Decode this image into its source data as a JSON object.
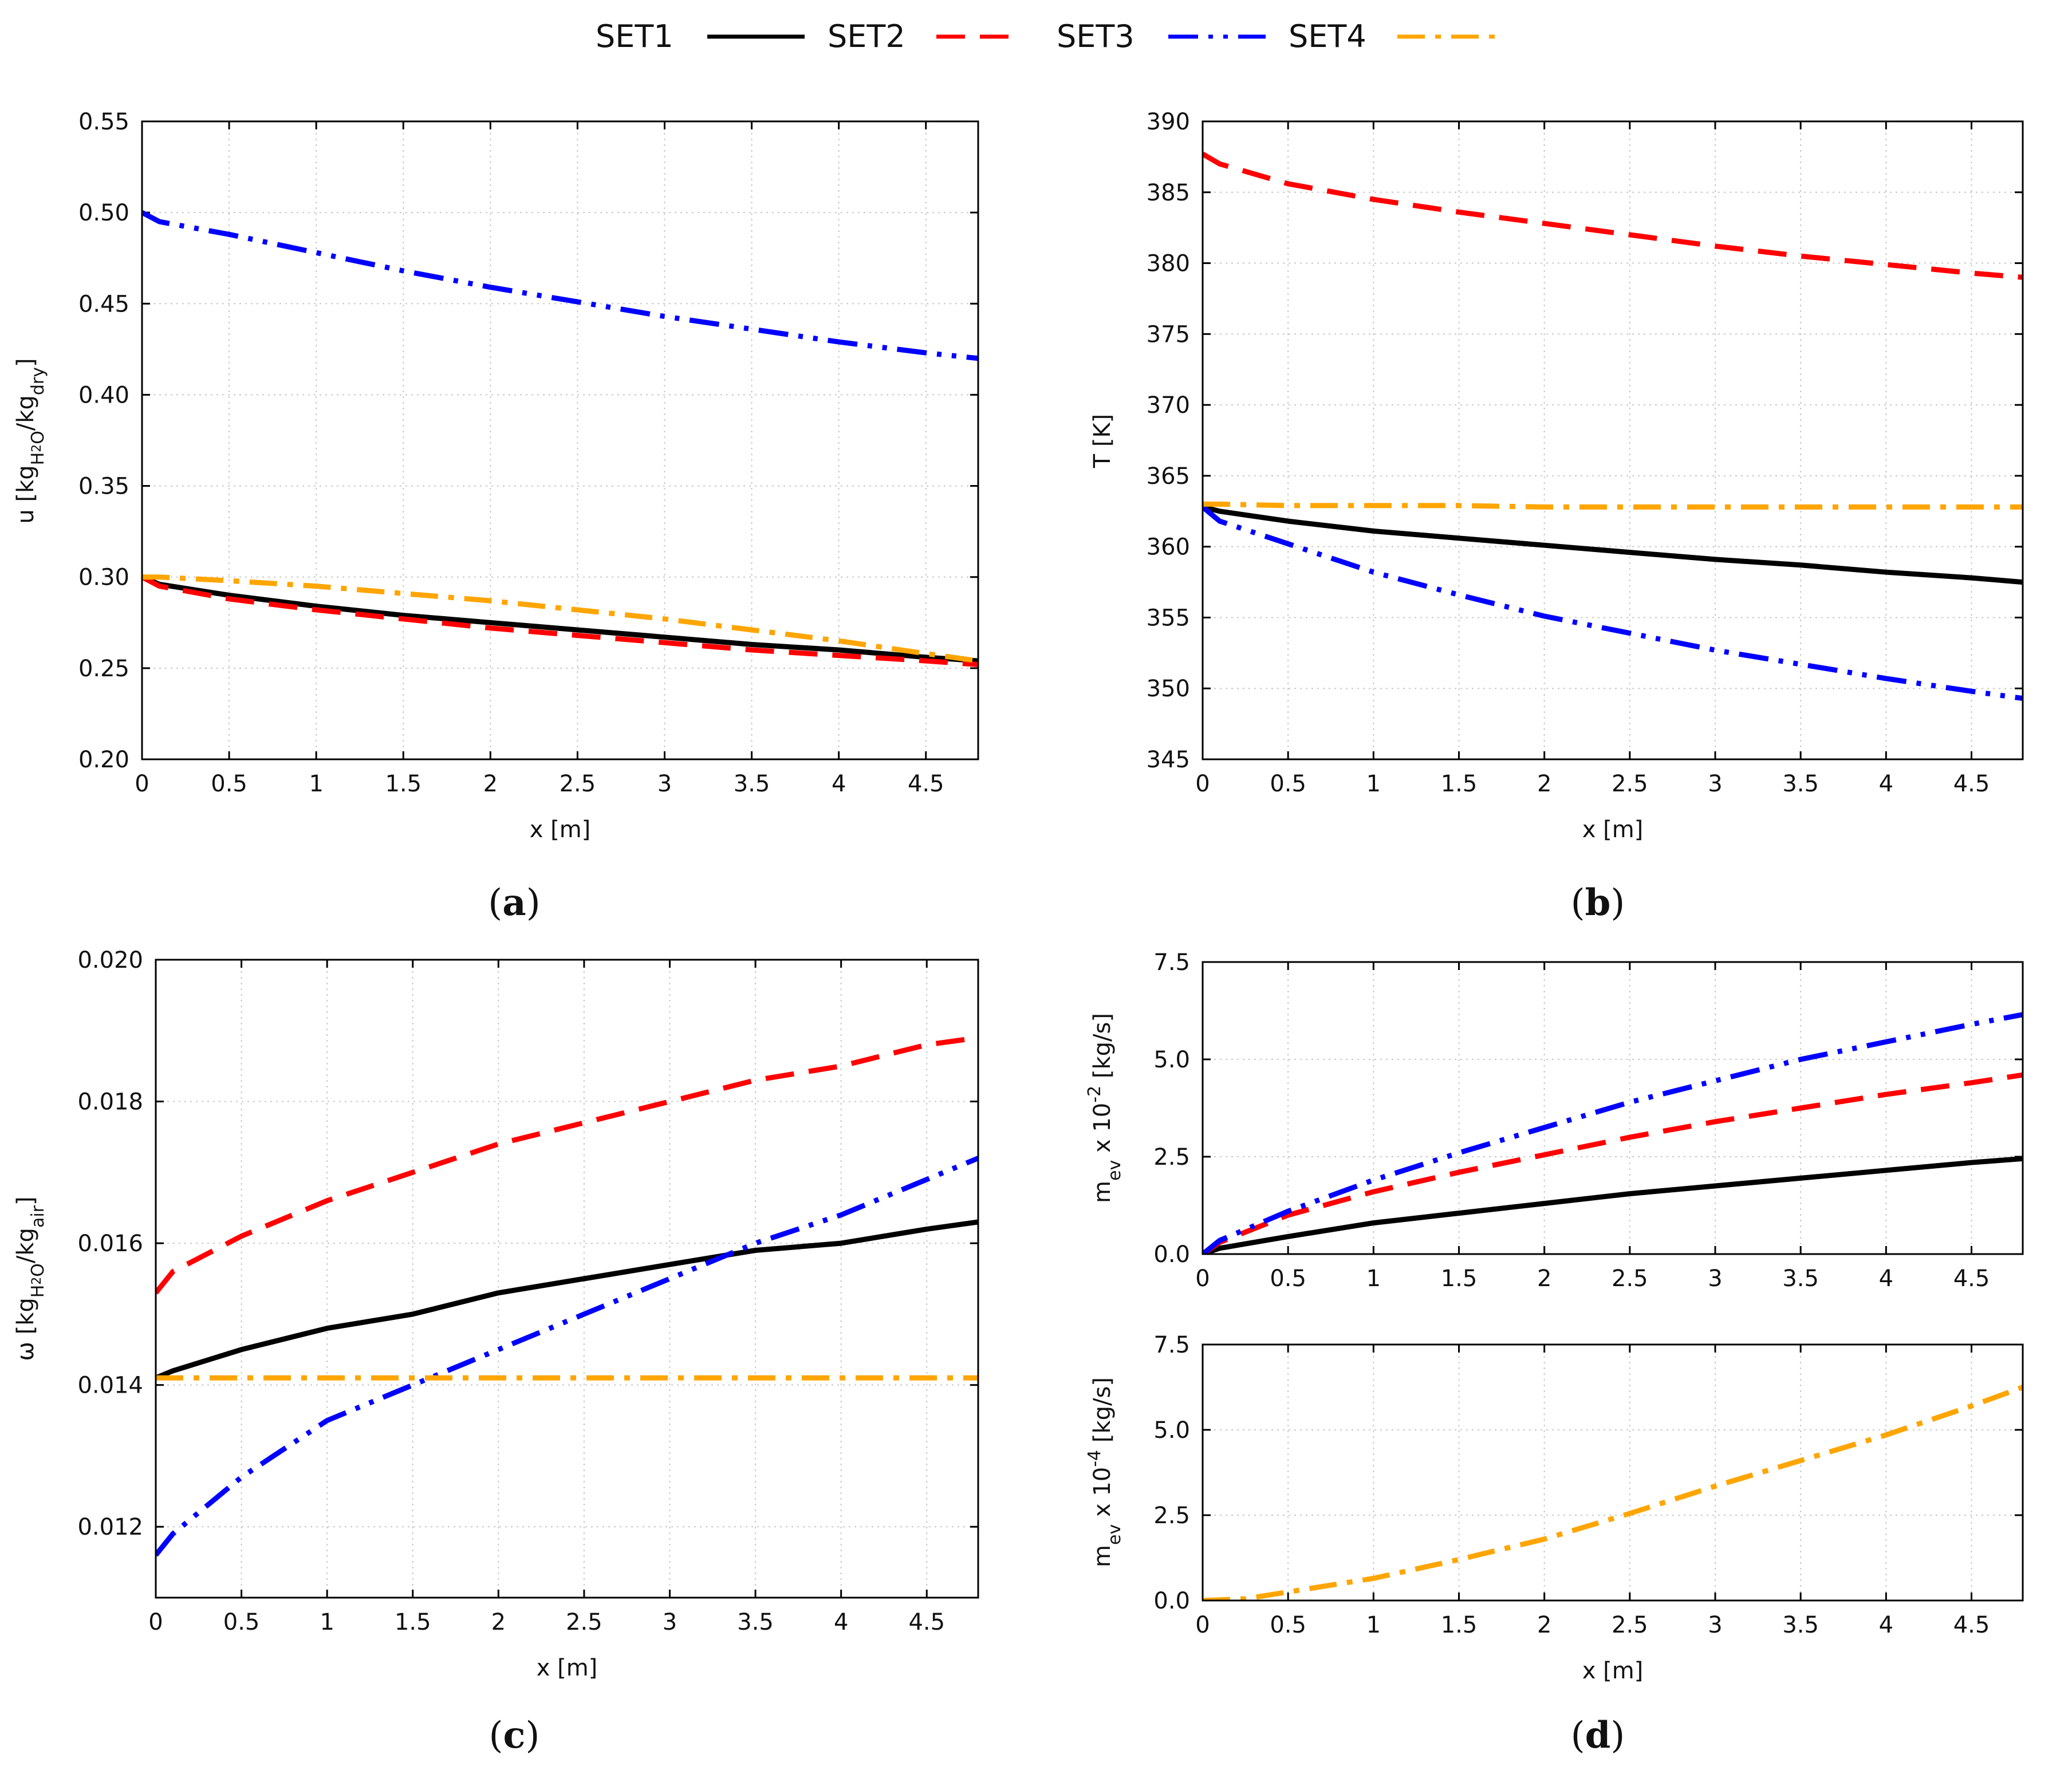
{
  "legend": [
    {
      "name": "SET1",
      "color": "#000000",
      "dash": "solid"
    },
    {
      "name": "SET2",
      "color": "#ff0000",
      "dash": "dashed"
    },
    {
      "name": "SET3",
      "color": "#0000ff",
      "dash": "dash-dot-dot"
    },
    {
      "name": "SET4",
      "color": "#ffa500",
      "dash": "dash-dot"
    }
  ],
  "chart_data": [
    {
      "id": "a",
      "type": "line",
      "tag": "a",
      "xlabel": "x [m]",
      "ylabel": "u [kg_H2O/kg_dry]",
      "xlim": [
        0,
        4.8
      ],
      "ylim": [
        0.2,
        0.55
      ],
      "xticks": [
        "0",
        "0.5",
        "1",
        "1.5",
        "2",
        "2.5",
        "3",
        "3.5",
        "4",
        "4.5"
      ],
      "yticks": [
        "0.20",
        "0.25",
        "0.30",
        "0.35",
        "0.40",
        "0.45",
        "0.50",
        "0.55"
      ],
      "grid": true,
      "x": [
        0,
        0.1,
        0.5,
        1,
        1.5,
        2,
        2.5,
        3,
        3.5,
        4,
        4.5,
        4.8
      ],
      "series": [
        {
          "name": "SET1",
          "values": [
            0.3,
            0.296,
            0.29,
            0.284,
            0.279,
            0.275,
            0.271,
            0.267,
            0.263,
            0.26,
            0.256,
            0.254
          ]
        },
        {
          "name": "SET2",
          "values": [
            0.3,
            0.295,
            0.288,
            0.282,
            0.277,
            0.272,
            0.268,
            0.264,
            0.26,
            0.257,
            0.254,
            0.252
          ]
        },
        {
          "name": "SET3",
          "values": [
            0.5,
            0.495,
            0.488,
            0.478,
            0.468,
            0.459,
            0.451,
            0.443,
            0.436,
            0.429,
            0.423,
            0.42
          ]
        },
        {
          "name": "SET4",
          "values": [
            0.3,
            0.3,
            0.298,
            0.295,
            0.291,
            0.287,
            0.282,
            0.277,
            0.271,
            0.265,
            0.258,
            0.254
          ]
        }
      ]
    },
    {
      "id": "b",
      "type": "line",
      "tag": "b",
      "xlabel": "x [m]",
      "ylabel": "T [K]",
      "xlim": [
        0,
        4.8
      ],
      "ylim": [
        345,
        390
      ],
      "xticks": [
        "0",
        "0.5",
        "1",
        "1.5",
        "2",
        "2.5",
        "3",
        "3.5",
        "4",
        "4.5"
      ],
      "yticks": [
        "345",
        "350",
        "355",
        "360",
        "365",
        "370",
        "375",
        "380",
        "385",
        "390"
      ],
      "grid": true,
      "x": [
        0,
        0.1,
        0.5,
        1,
        1.5,
        2,
        2.5,
        3,
        3.5,
        4,
        4.5,
        4.8
      ],
      "series": [
        {
          "name": "SET1",
          "values": [
            362.8,
            362.5,
            361.8,
            361.1,
            360.6,
            360.1,
            359.6,
            359.1,
            358.7,
            358.2,
            357.8,
            357.5
          ]
        },
        {
          "name": "SET2",
          "values": [
            387.7,
            387.0,
            385.6,
            384.5,
            383.6,
            382.8,
            382.0,
            381.2,
            380.5,
            379.9,
            379.3,
            379.0
          ]
        },
        {
          "name": "SET3",
          "values": [
            362.8,
            361.8,
            360.2,
            358.2,
            356.6,
            355.1,
            353.9,
            352.7,
            351.7,
            350.7,
            349.8,
            349.3
          ]
        },
        {
          "name": "SET4",
          "values": [
            363.0,
            363.0,
            362.9,
            362.9,
            362.9,
            362.8,
            362.8,
            362.8,
            362.8,
            362.8,
            362.8,
            362.8
          ]
        }
      ]
    },
    {
      "id": "c",
      "type": "line",
      "tag": "c",
      "xlabel": "x [m]",
      "ylabel": "ω [kg_H2O/kg_air]",
      "xlim": [
        0,
        4.8
      ],
      "ylim": [
        0.011,
        0.02
      ],
      "xticks": [
        "0",
        "0.5",
        "1",
        "1.5",
        "2",
        "2.5",
        "3",
        "3.5",
        "4",
        "4.5"
      ],
      "yticks": [
        "0.012",
        "0.014",
        "0.016",
        "0.018",
        "0.020"
      ],
      "grid": true,
      "x": [
        0,
        0.1,
        0.5,
        1,
        1.5,
        2,
        2.5,
        3,
        3.5,
        4,
        4.5,
        4.8
      ],
      "series": [
        {
          "name": "SET1",
          "values": [
            0.0141,
            0.0142,
            0.0145,
            0.0148,
            0.015,
            0.0153,
            0.0155,
            0.0157,
            0.0159,
            0.016,
            0.0162,
            0.0163
          ]
        },
        {
          "name": "SET2",
          "values": [
            0.0153,
            0.0156,
            0.0161,
            0.0166,
            0.017,
            0.0174,
            0.0177,
            0.018,
            0.0183,
            0.0185,
            0.0188,
            0.0189
          ]
        },
        {
          "name": "SET3",
          "values": [
            0.0116,
            0.0119,
            0.0127,
            0.0135,
            0.014,
            0.0145,
            0.015,
            0.0155,
            0.016,
            0.0164,
            0.0169,
            0.0172
          ]
        },
        {
          "name": "SET4",
          "values": [
            0.0141,
            0.0141,
            0.0141,
            0.0141,
            0.0141,
            0.0141,
            0.0141,
            0.0141,
            0.0141,
            0.0141,
            0.0141,
            0.0141
          ]
        }
      ]
    },
    {
      "id": "d-top",
      "type": "line",
      "tag": "",
      "xlabel": "",
      "ylabel": "m_ev x 10^-2 [kg/s]",
      "xlim": [
        0,
        4.8
      ],
      "ylim": [
        0,
        7.5
      ],
      "xticks": [
        "0",
        "0.5",
        "1",
        "1.5",
        "2",
        "2.5",
        "3",
        "3.5",
        "4",
        "4.5"
      ],
      "yticks": [
        "0.0",
        "2.5",
        "5.0",
        "7.5"
      ],
      "grid": true,
      "x": [
        0,
        0.1,
        0.5,
        1,
        1.5,
        2,
        2.5,
        3,
        3.5,
        4,
        4.5,
        4.8
      ],
      "series": [
        {
          "name": "SET1",
          "values": [
            0.0,
            0.15,
            0.45,
            0.8,
            1.05,
            1.3,
            1.55,
            1.75,
            1.95,
            2.15,
            2.35,
            2.45
          ]
        },
        {
          "name": "SET2",
          "values": [
            0.0,
            0.3,
            1.0,
            1.6,
            2.1,
            2.55,
            3.0,
            3.4,
            3.75,
            4.1,
            4.4,
            4.6
          ]
        },
        {
          "name": "SET3",
          "values": [
            0.0,
            0.35,
            1.1,
            1.9,
            2.6,
            3.25,
            3.9,
            4.45,
            5.0,
            5.45,
            5.9,
            6.15
          ]
        }
      ]
    },
    {
      "id": "d-bottom",
      "type": "line",
      "tag": "d",
      "xlabel": "x [m]",
      "ylabel": "m_ev x 10^-4 [kg/s]",
      "xlim": [
        0,
        4.8
      ],
      "ylim": [
        0,
        7.5
      ],
      "xticks": [
        "0",
        "0.5",
        "1",
        "1.5",
        "2",
        "2.5",
        "3",
        "3.5",
        "4",
        "4.5"
      ],
      "yticks": [
        "0.0",
        "2.5",
        "5.0",
        "7.5"
      ],
      "grid": true,
      "x": [
        0,
        0.25,
        0.5,
        1,
        1.5,
        2,
        2.5,
        3,
        3.5,
        4,
        4.5,
        4.8
      ],
      "series": [
        {
          "name": "SET4",
          "values": [
            0.0,
            0.05,
            0.25,
            0.65,
            1.2,
            1.8,
            2.55,
            3.35,
            4.1,
            4.85,
            5.7,
            6.25
          ]
        }
      ]
    }
  ]
}
